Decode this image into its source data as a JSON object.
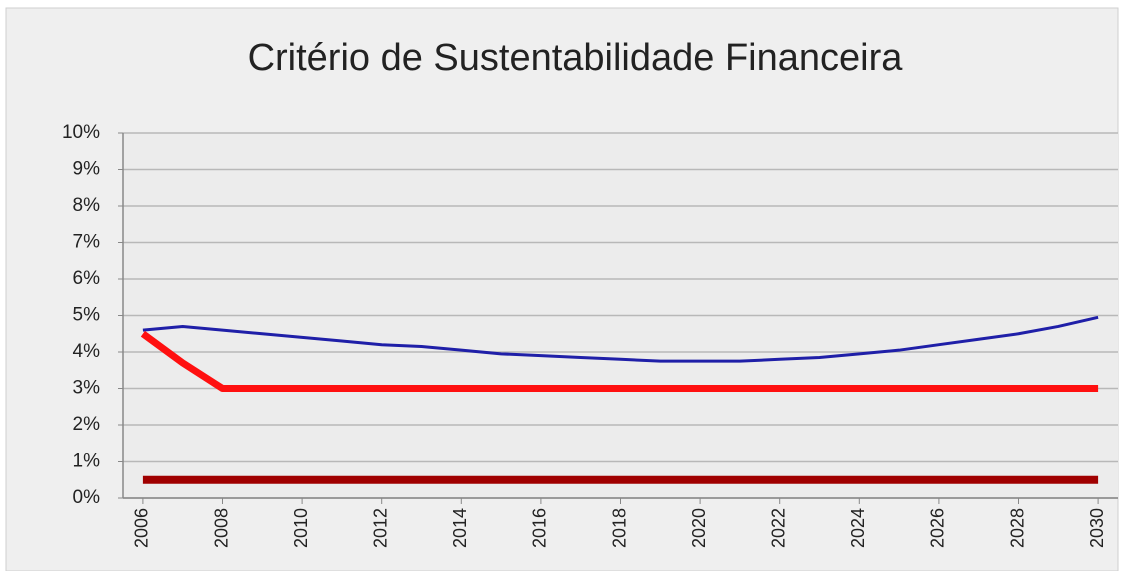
{
  "chart_data": {
    "type": "line",
    "title": "Critério de Sustentabilidade Financeira",
    "x": [
      2006,
      2007,
      2008,
      2009,
      2010,
      2011,
      2012,
      2013,
      2014,
      2015,
      2016,
      2017,
      2018,
      2019,
      2020,
      2021,
      2022,
      2023,
      2024,
      2025,
      2026,
      2027,
      2028,
      2029,
      2030
    ],
    "series": [
      {
        "color": "#1f1fa8",
        "width": 3,
        "values": [
          4.6,
          4.7,
          4.6,
          4.5,
          4.4,
          4.3,
          4.2,
          4.15,
          4.05,
          3.95,
          3.9,
          3.85,
          3.8,
          3.75,
          3.75,
          3.75,
          3.8,
          3.85,
          3.95,
          4.05,
          4.2,
          4.35,
          4.5,
          4.7,
          4.95
        ]
      },
      {
        "color": "#ff1010",
        "width": 7,
        "values": [
          4.5,
          3.7,
          3.0,
          3.0,
          3.0,
          3.0,
          3.0,
          3.0,
          3.0,
          3.0,
          3.0,
          3.0,
          3.0,
          3.0,
          3.0,
          3.0,
          3.0,
          3.0,
          3.0,
          3.0,
          3.0,
          3.0,
          3.0,
          3.0,
          3.0
        ]
      },
      {
        "color": "#a00000",
        "width": 8,
        "values": [
          0.5,
          0.5,
          0.5,
          0.5,
          0.5,
          0.5,
          0.5,
          0.5,
          0.5,
          0.5,
          0.5,
          0.5,
          0.5,
          0.5,
          0.5,
          0.5,
          0.5,
          0.5,
          0.5,
          0.5,
          0.5,
          0.5,
          0.5,
          0.5,
          0.5
        ]
      }
    ],
    "xlim": [
      2005.5,
      2030.5
    ],
    "xticks": [
      2006,
      2008,
      2010,
      2012,
      2014,
      2016,
      2018,
      2020,
      2022,
      2024,
      2026,
      2028,
      2030
    ],
    "ylim": [
      0,
      10
    ],
    "yticks": [
      {
        "value": 0,
        "label": "0%"
      },
      {
        "value": 1,
        "label": "1%"
      },
      {
        "value": 2,
        "label": "2%"
      },
      {
        "value": 3,
        "label": "3%"
      },
      {
        "value": 4,
        "label": "4%"
      },
      {
        "value": 5,
        "label": "5%"
      },
      {
        "value": 6,
        "label": "6%"
      },
      {
        "value": 7,
        "label": "7%"
      },
      {
        "value": 8,
        "label": "8%"
      },
      {
        "value": 9,
        "label": "9%"
      },
      {
        "value": 10,
        "label": "10%"
      }
    ],
    "grid": true
  }
}
